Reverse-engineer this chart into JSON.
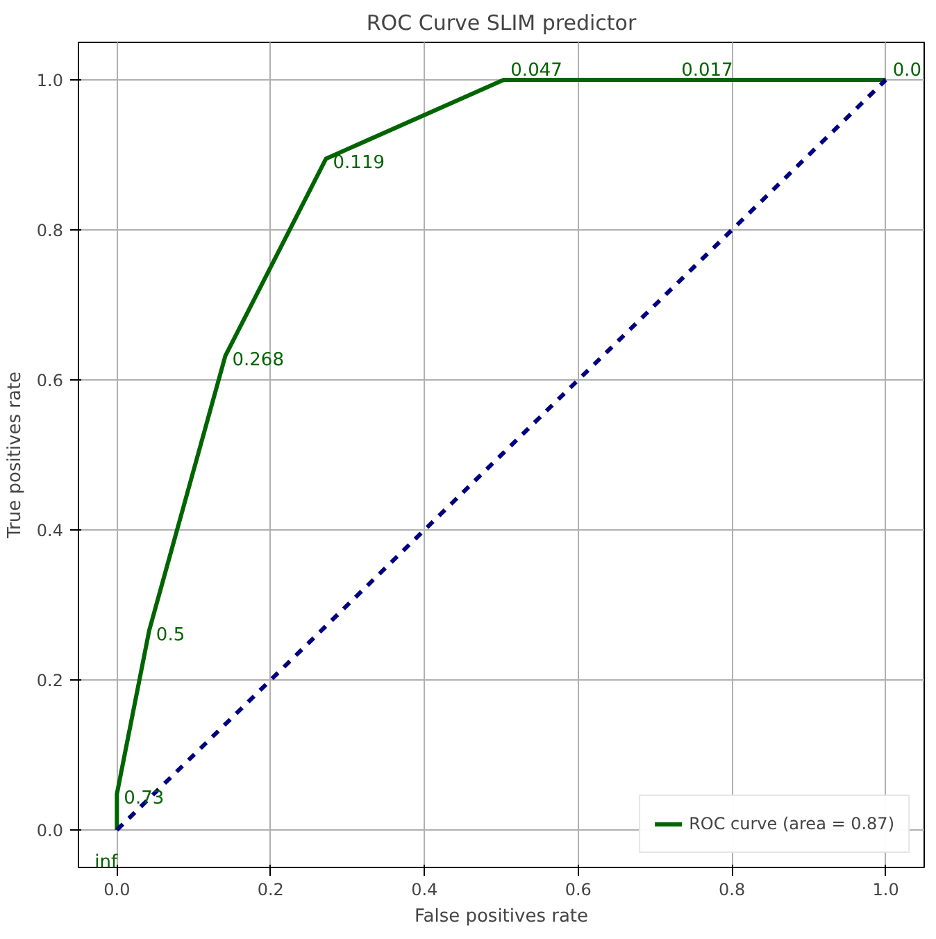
{
  "chart_data": {
    "type": "line",
    "title": "ROC Curve SLIM predictor",
    "xlabel": "False positives rate",
    "ylabel": "True positives rate",
    "series": [
      {
        "name": "ROC curve (area = 0.87)",
        "color": "#006400",
        "x": [
          0,
          0,
          0.042,
          0.141,
          0.272,
          0.503,
          0.725,
          1.0
        ],
        "values": [
          0,
          0.048,
          0.266,
          0.632,
          0.895,
          1.0,
          1.0,
          1.0
        ]
      },
      {
        "color": "#000080",
        "line_style": "dashed",
        "x": [
          0,
          1
        ],
        "values": [
          0,
          1
        ]
      }
    ],
    "annotations": [
      {
        "text": "inf",
        "x": 0,
        "y": 0
      },
      {
        "text": "0.73",
        "x": 0,
        "y": 0.048
      },
      {
        "text": "0.5",
        "x": 0.042,
        "y": 0.266
      },
      {
        "text": "0.268",
        "x": 0.141,
        "y": 0.632
      },
      {
        "text": "0.119",
        "x": 0.272,
        "y": 0.895
      },
      {
        "text": "0.047",
        "x": 0.503,
        "y": 1.0
      },
      {
        "text": "0.017",
        "x": 0.725,
        "y": 1.0
      },
      {
        "text": "0.0",
        "x": 1.0,
        "y": 1.0
      }
    ],
    "xlim": [
      -0.05,
      1.05
    ],
    "ylim": [
      -0.05,
      1.05
    ],
    "xticks": [
      {
        "value": 0,
        "label": "0.0"
      },
      {
        "value": 0.2,
        "label": "0.2"
      },
      {
        "value": 0.4,
        "label": "0.4"
      },
      {
        "value": 0.6,
        "label": "0.6"
      },
      {
        "value": 0.8,
        "label": "0.8"
      },
      {
        "value": 1,
        "label": "1.0"
      }
    ],
    "yticks": [
      {
        "value": 0,
        "label": "0.0"
      },
      {
        "value": 0.2,
        "label": "0.2"
      },
      {
        "value": 0.4,
        "label": "0.4"
      },
      {
        "value": 0.6,
        "label": "0.6"
      },
      {
        "value": 0.8,
        "label": "0.8"
      },
      {
        "value": 1,
        "label": "1.0"
      }
    ],
    "grid": true,
    "legend": "bottom right",
    "marker": "none",
    "line_style": "solid"
  }
}
